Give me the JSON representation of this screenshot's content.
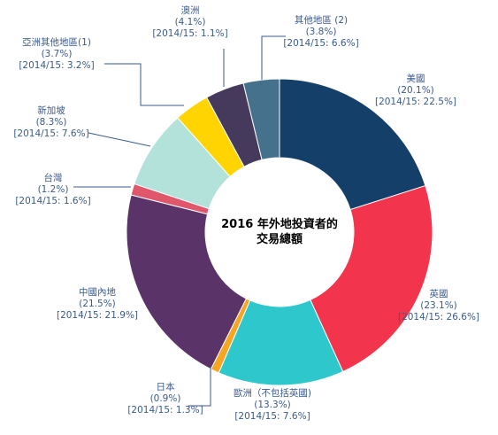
{
  "chart_data": {
    "type": "pie",
    "variant": "donut",
    "title_lines": [
      "2016 年外地投資者的",
      "交易總額"
    ],
    "slices": [
      {
        "label": "美國",
        "value": 20.1,
        "value_text": "(20.1%)",
        "prior_text": "[2014/15: 22.5%]",
        "color": "#143f68"
      },
      {
        "label": "英國",
        "value": 23.1,
        "value_text": "(23.1%)",
        "prior_text": "[2014/15: 26.6%]",
        "color": "#f2344d"
      },
      {
        "label": "歐洲（不包括英國)",
        "value": 13.3,
        "value_text": "(13.3%)",
        "prior_text": "[2014/15: 7.6%]",
        "color": "#2ec7cc"
      },
      {
        "label": "日本",
        "value": 0.9,
        "value_text": "(0.9%)",
        "prior_text": "[2014/15: 1.3%]",
        "color": "#f6a623"
      },
      {
        "label": "中國內地",
        "value": 21.5,
        "value_text": "(21.5%)",
        "prior_text": "[2014/15: 21.9%]",
        "color": "#5a3468"
      },
      {
        "label": "台灣",
        "value": 1.2,
        "value_text": "(1.2%)",
        "prior_text": "[2014/15: 1.6%]",
        "color": "#e0566b"
      },
      {
        "label": "新加坡",
        "value": 8.3,
        "value_text": "(8.3%)",
        "prior_text": "[2014/15: 7.6%]",
        "color": "#b2e2d9"
      },
      {
        "label": "亞洲其他地區(1)",
        "value": 3.7,
        "value_text": "(3.7%)",
        "prior_text": "[2014/15: 3.2%]",
        "color": "#ffd400"
      },
      {
        "label": "澳洲",
        "value": 4.1,
        "value_text": "(4.1%)",
        "prior_text": "[2014/15: 1.1%]",
        "color": "#463a5c"
      },
      {
        "label": "其他地區 (2)",
        "value": 3.8,
        "value_text": "(3.8%)",
        "prior_text": "[2014/15: 6.6%]",
        "color": "#46718c"
      }
    ]
  }
}
